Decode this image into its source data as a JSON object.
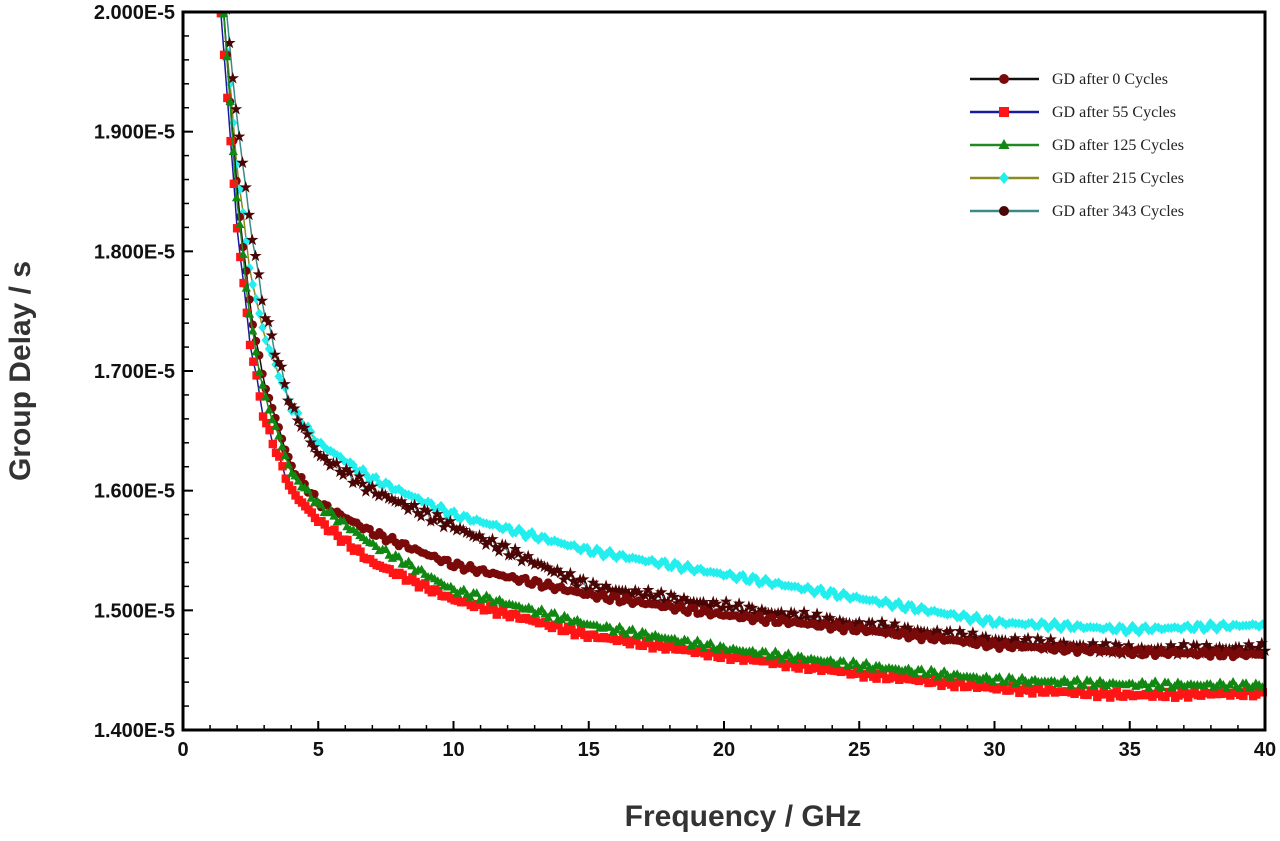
{
  "chart_data": {
    "type": "line",
    "title": "",
    "xlabel": "Frequency / GHz",
    "ylabel": "Group Delay  / s",
    "xlim": [
      0,
      40
    ],
    "ylim": [
      1.4e-05,
      2e-05
    ],
    "x_ticks": [
      "0",
      "5",
      "10",
      "15",
      "20",
      "25",
      "30",
      "35",
      "40"
    ],
    "y_ticks": [
      "1.400E-5",
      "1.500E-5",
      "1.600E-5",
      "1.700E-5",
      "1.800E-5",
      "1.900E-5",
      "2.000E-5"
    ],
    "legend_position": "top-right",
    "y_unit_scale": 1e-05,
    "series": [
      {
        "name": "GD after 215 Cycles",
        "line_color": "#8a8a20",
        "marker_color": "#22eeee",
        "marker": "diamond",
        "x": [
          1.5,
          2,
          2.5,
          3,
          4,
          5,
          7,
          10,
          15,
          20,
          25,
          30,
          35,
          40
        ],
        "y": [
          2.0,
          1.87,
          1.78,
          1.73,
          1.67,
          1.64,
          1.61,
          1.58,
          1.55,
          1.53,
          1.51,
          1.49,
          1.484,
          1.488
        ]
      },
      {
        "name": "GD after 343 Cycles",
        "line_color": "#3a8a8a",
        "marker_color": "#4a0505",
        "marker": "star",
        "x": [
          1.6,
          2,
          2.5,
          3,
          4,
          5,
          7,
          10,
          15,
          20,
          25,
          30,
          35,
          40
        ],
        "y": [
          2.0,
          1.91,
          1.82,
          1.75,
          1.67,
          1.63,
          1.6,
          1.57,
          1.52,
          1.503,
          1.488,
          1.475,
          1.467,
          1.468
        ]
      },
      {
        "name": "GD after 0 Cycles",
        "line_color": "#111111",
        "marker_color": "#7a0a0a",
        "marker": "circle",
        "x": [
          1.5,
          2,
          2.5,
          3,
          4,
          5,
          7,
          10,
          15,
          20,
          25,
          30,
          35,
          40
        ],
        "y": [
          2.0,
          1.85,
          1.75,
          1.69,
          1.62,
          1.59,
          1.565,
          1.538,
          1.513,
          1.496,
          1.484,
          1.471,
          1.465,
          1.463
        ]
      },
      {
        "name": "GD after 55 Cycles",
        "line_color": "#1a1aa0",
        "marker_color": "#ff1515",
        "marker": "square",
        "x": [
          1.4,
          2,
          2.5,
          3,
          4,
          5,
          7,
          10,
          15,
          20,
          25,
          30,
          35,
          40
        ],
        "y": [
          2.0,
          1.82,
          1.72,
          1.66,
          1.6,
          1.575,
          1.54,
          1.509,
          1.479,
          1.462,
          1.447,
          1.435,
          1.429,
          1.431
        ]
      },
      {
        "name": "GD after 125 Cycles",
        "line_color": "#228822",
        "marker_color": "#118811",
        "marker": "triangle",
        "x": [
          1.5,
          2,
          2.5,
          3,
          4,
          5,
          7,
          10,
          15,
          20,
          25,
          30,
          35,
          40
        ],
        "y": [
          2.0,
          1.84,
          1.74,
          1.68,
          1.615,
          1.588,
          1.555,
          1.517,
          1.488,
          1.468,
          1.454,
          1.442,
          1.438,
          1.437
        ]
      }
    ],
    "legend_order": [
      2,
      3,
      4,
      0,
      1
    ]
  }
}
